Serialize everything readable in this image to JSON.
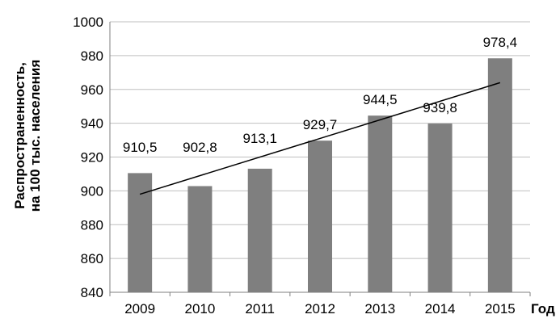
{
  "chart_data": {
    "type": "bar",
    "categories": [
      "2009",
      "2010",
      "2011",
      "2012",
      "2013",
      "2014",
      "2015"
    ],
    "values": [
      910.5,
      902.8,
      913.1,
      929.7,
      944.5,
      939.8,
      978.4
    ],
    "data_labels": [
      "910,5",
      "902,8",
      "913,1",
      "929,7",
      "944,5",
      "939,8",
      "978,4"
    ],
    "title": "",
    "xlabel": "Год",
    "ylabel_line1": "Распространенность,",
    "ylabel_line2": "на 100 тыс. населения",
    "ylim": [
      840,
      1000
    ],
    "yticks": [
      840,
      860,
      880,
      900,
      920,
      940,
      960,
      980,
      1000
    ],
    "grid": true,
    "trendline": {
      "type": "linear",
      "start": 898,
      "end": 964
    },
    "colors": {
      "bar": "#7f7f7f",
      "grid": "#bfbfbf",
      "axis": "#7f7f7f",
      "trend": "#000000"
    }
  }
}
